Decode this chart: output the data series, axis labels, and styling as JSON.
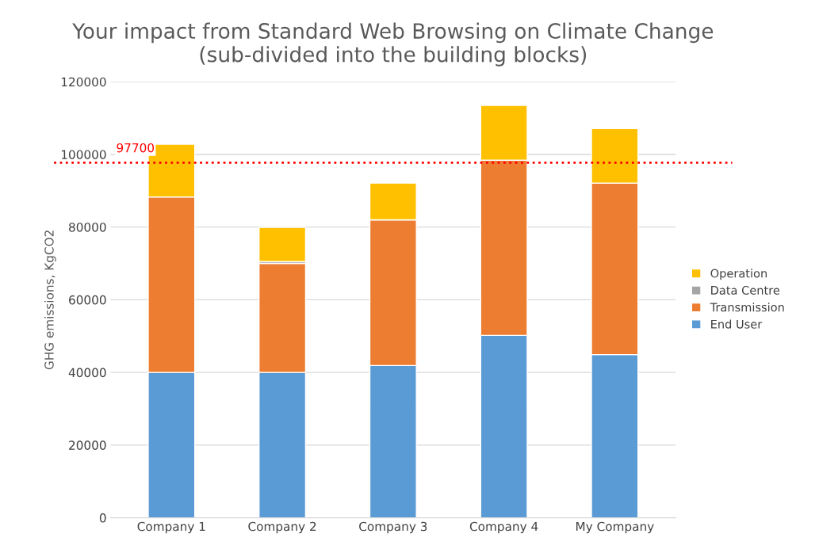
{
  "chart_data": {
    "type": "bar",
    "title": "Your impact from Standard Web Browsing on Climate Change\n(sub-divided into the building blocks)",
    "ylabel": "GHG emissions, KgCO2",
    "categories": [
      "Company 1",
      "Company 2",
      "Company 3",
      "Company 4",
      "My Company"
    ],
    "stacked": true,
    "series": [
      {
        "name": "End User",
        "color": "#5b9bd5",
        "values": [
          40000,
          40000,
          41900,
          50200,
          44900
        ]
      },
      {
        "name": "Transmission",
        "color": "#ed7d31",
        "values": [
          48300,
          30000,
          40100,
          48200,
          47200
        ]
      },
      {
        "name": "Data Centre",
        "color": "#a5a5a5",
        "values": [
          null,
          500,
          null,
          null,
          null
        ]
      },
      {
        "name": "Operation",
        "color": "#ffc000",
        "values": [
          14500,
          9400,
          10100,
          15100,
          15000
        ]
      }
    ],
    "ylim": [
      0,
      120000
    ],
    "yticks": [
      0,
      20000,
      40000,
      60000,
      80000,
      100000,
      120000
    ],
    "grid": "y",
    "legend": "right",
    "ref_lines": [
      {
        "axis": "y",
        "value": 97700,
        "label": "97700",
        "color": "#ff0000",
        "line_style": "dotted"
      }
    ]
  }
}
